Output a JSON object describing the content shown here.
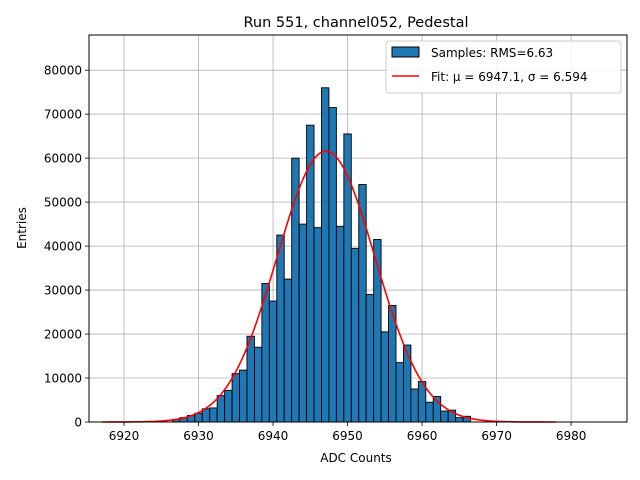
{
  "chart_data": {
    "type": "bar",
    "title": "Run 551, channel052, Pedestal",
    "xlabel": "ADC Counts",
    "ylabel": "Entries",
    "xlim": [
      6915.3,
      6987.5
    ],
    "ylim": [
      0,
      88000
    ],
    "xticks": [
      6920,
      6930,
      6940,
      6950,
      6960,
      6970,
      6980
    ],
    "yticks": [
      0,
      10000,
      20000,
      30000,
      40000,
      50000,
      60000,
      70000,
      80000
    ],
    "grid": true,
    "legend_position": "top-right",
    "bin_width": 1,
    "series": [
      {
        "name": "Samples: RMS=6.63",
        "kind": "histogram",
        "color": "#1f77b4",
        "edgecolor": "#000000",
        "x": [
          6927,
          6928,
          6929,
          6930,
          6931,
          6932,
          6933,
          6934,
          6935,
          6936,
          6937,
          6938,
          6939,
          6940,
          6941,
          6942,
          6943,
          6944,
          6945,
          6946,
          6947,
          6948,
          6949,
          6950,
          6951,
          6952,
          6953,
          6954,
          6955,
          6956,
          6957,
          6958,
          6959,
          6960,
          6961,
          6962,
          6963,
          6964,
          6965,
          6966
        ],
        "values": [
          600,
          1000,
          1500,
          2000,
          3000,
          3200,
          6000,
          7200,
          11000,
          11800,
          19500,
          17000,
          31500,
          27500,
          42500,
          32500,
          60000,
          45000,
          67500,
          44200,
          76000,
          71500,
          44500,
          65500,
          39500,
          54000,
          29000,
          41500,
          20500,
          26500,
          13500,
          17500,
          7500,
          9200,
          4500,
          5800,
          2500,
          2700,
          1000,
          1300
        ]
      },
      {
        "name": "Fit: μ = 6947.1, σ = 6.594",
        "kind": "gaussian-fit",
        "color": "#ff0000",
        "mu": 6947.1,
        "sigma": 6.594,
        "amplitude": 61600,
        "x_range": [
          6917,
          6978
        ]
      }
    ]
  }
}
